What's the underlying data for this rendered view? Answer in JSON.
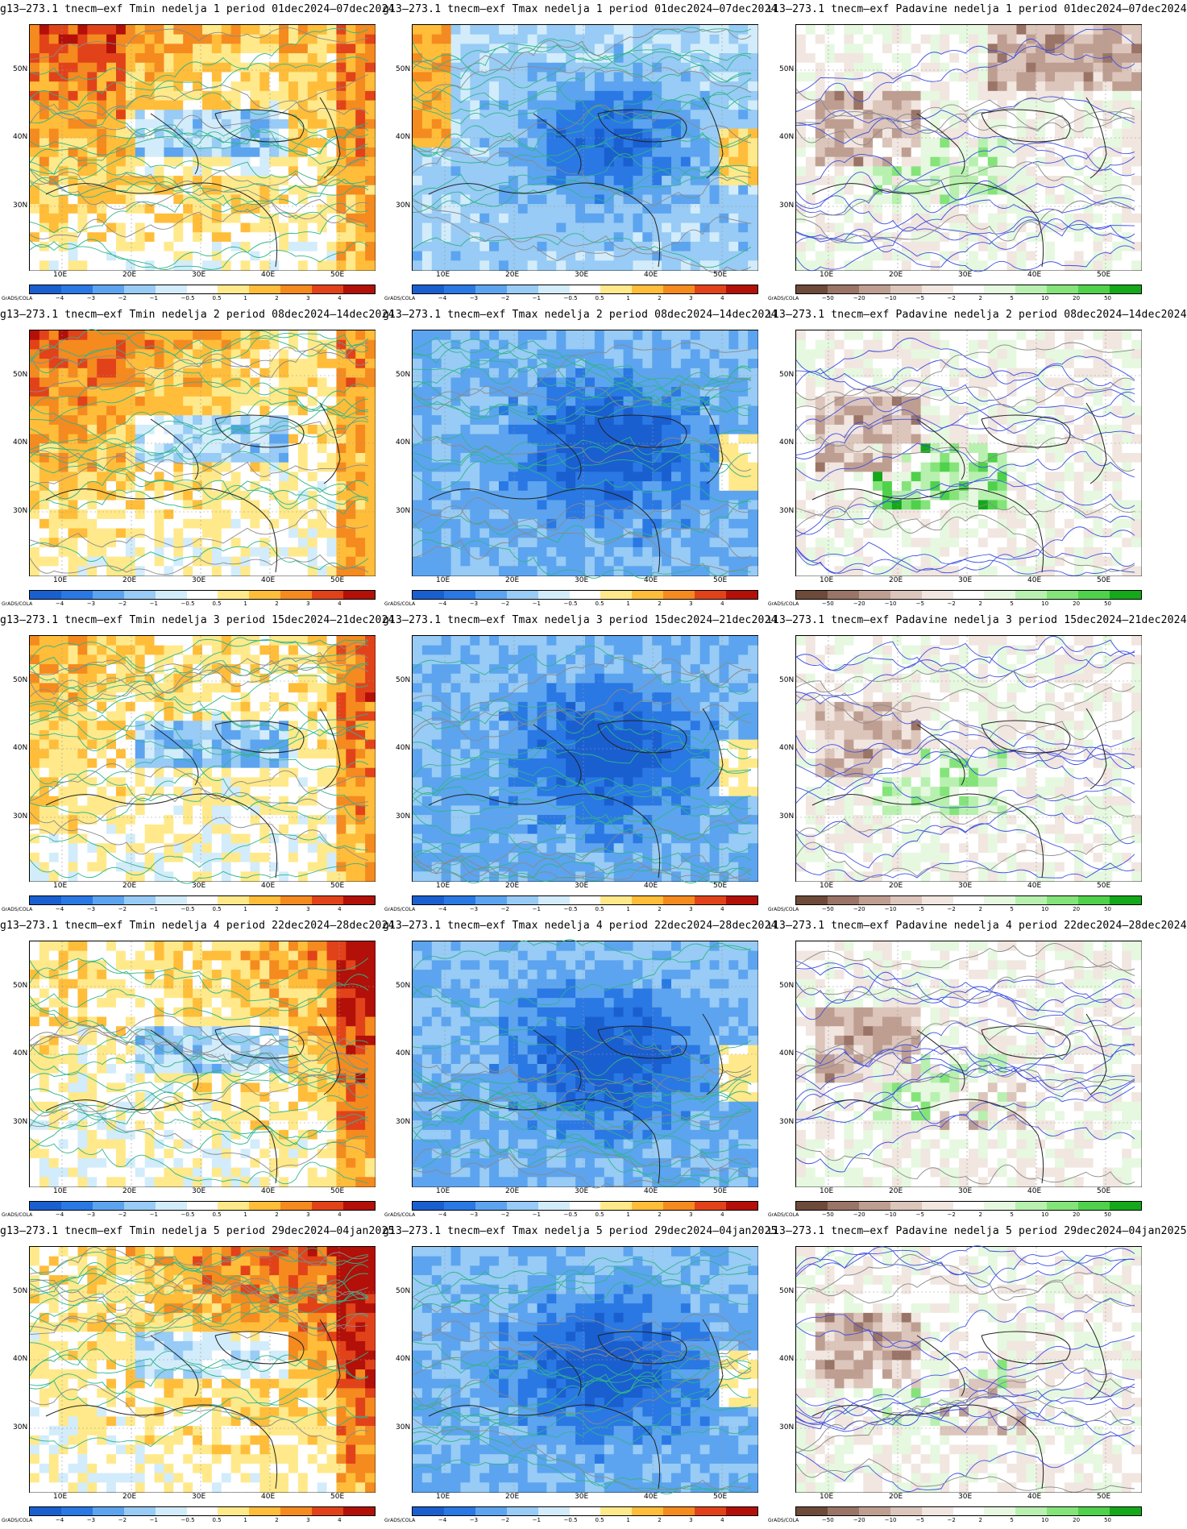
{
  "panels": [
    {
      "title": "g13–273.1 tnecm–exf Tmin nedelja 1 period 01dec2024–07dec2024",
      "kind": "temp",
      "palette": "tmin",
      "week": 1
    },
    {
      "title": "g13–273.1 tnecm–exf Tmax nedelja 1 period 01dec2024–07dec2024",
      "kind": "temp",
      "palette": "tmax",
      "week": 1
    },
    {
      "title": "ı13–273.1 tnecm–exf Padavine nedelja 1 period 01dec2024–07dec2024",
      "kind": "precip",
      "palette": "precip",
      "week": 1
    },
    {
      "title": "g13–273.1 tnecm–exf Tmin nedelja 2 period 08dec2024–14dec2024",
      "kind": "temp",
      "palette": "tmin",
      "week": 2
    },
    {
      "title": "g13–273.1 tnecm–exf Tmax nedelja 2 period 08dec2024–14dec2024",
      "kind": "temp",
      "palette": "tmax",
      "week": 2
    },
    {
      "title": "ı13–273.1 tnecm–exf Padavine nedelja 2 period 08dec2024–14dec2024",
      "kind": "precip",
      "palette": "precip",
      "week": 2
    },
    {
      "title": "g13–273.1 tnecm–exf Tmin nedelja 3 period 15dec2024–21dec2024",
      "kind": "temp",
      "palette": "tmin",
      "week": 3
    },
    {
      "title": "g13–273.1 tnecm–exf Tmax nedelja 3 period 15dec2024–21dec2024",
      "kind": "temp",
      "palette": "tmax",
      "week": 3
    },
    {
      "title": "ı13–273.1 tnecm–exf Padavine nedelja 3 period 15dec2024–21dec2024",
      "kind": "precip",
      "palette": "precip",
      "week": 3
    },
    {
      "title": "g13–273.1 tnecm–exf Tmin nedelja 4 period 22dec2024–28dec2024",
      "kind": "temp",
      "palette": "tmin",
      "week": 4
    },
    {
      "title": "g13–273.1 tnecm–exf Tmax nedelja 4 period 22dec2024–28dec2024",
      "kind": "temp",
      "palette": "tmax",
      "week": 4
    },
    {
      "title": "ı13–273.1 tnecm–exf Padavine nedelja 4 period 22dec2024–28dec2024",
      "kind": "precip",
      "palette": "precip",
      "week": 4
    },
    {
      "title": "g13–273.1 tnecm–exf Tmin nedelja 5 period 29dec2024–04jan2025",
      "kind": "temp",
      "palette": "tmin",
      "week": 5
    },
    {
      "title": "g13–273.1 tnecm–exf Tmax nedelja 5 period 29dec2024–04jan2025",
      "kind": "temp",
      "palette": "tmax",
      "week": 5
    },
    {
      "title": "ı13–273.1 tnecm–exf Padavine nedelja 5 period 29dec2024–04jan2025",
      "kind": "precip",
      "palette": "precip",
      "week": 5
    }
  ],
  "axes": {
    "lat_labels": [
      "50N",
      "40N",
      "30N"
    ],
    "lon_labels": [
      "10E",
      "20E",
      "30E",
      "40E",
      "50E"
    ]
  },
  "credit": "GrADS/COLA",
  "colorbars": {
    "temp": {
      "labels": [
        "−4",
        "−3",
        "−2",
        "−1",
        "−0.5",
        "0.5",
        "1",
        "2",
        "3",
        "4"
      ],
      "colors": [
        "#1a5fd0",
        "#2a78e4",
        "#5ca4ef",
        "#98cbf5",
        "#d2ecfb",
        "#ffffff",
        "#ffe98a",
        "#ffbd3a",
        "#f58a1f",
        "#e2421a",
        "#b21008"
      ]
    },
    "precip": {
      "labels": [
        "−50",
        "−20",
        "−10",
        "−5",
        "−2",
        "2",
        "5",
        "10",
        "20",
        "50"
      ],
      "colors": [
        "#6e4a3a",
        "#9a7466",
        "#bf9e92",
        "#dcc5bb",
        "#f1e6e0",
        "#ffffff",
        "#e6f8e0",
        "#b8f0b0",
        "#84e47a",
        "#4fd14b",
        "#14a81a"
      ]
    }
  }
}
